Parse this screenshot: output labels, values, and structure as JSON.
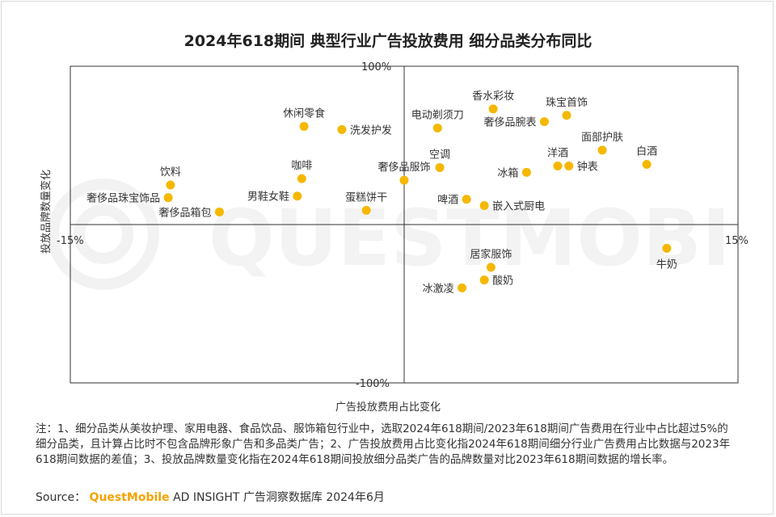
{
  "title": "2024年618期间 典型行业广告投放费用 细分品类分布同比",
  "watermark_text": "QUESTMOBILE",
  "chart_data": {
    "type": "scatter",
    "title": "2024年618期间 典型行业广告投放费用 细分品类分布同比",
    "xlabel": "广告投放费用占比变化",
    "ylabel": "投放品牌数量变化",
    "x_unit": "%",
    "y_unit": "%",
    "xlim": [
      -15,
      15
    ],
    "ylim": [
      -100,
      100
    ],
    "x_tick_labels": {
      "min": "-15%",
      "max": "15%"
    },
    "y_tick_labels": {
      "min": "-100%",
      "max": "100%"
    },
    "grid": false,
    "point_color": "#f5b800",
    "points": [
      {
        "label": "香水彩妆",
        "x": 4.0,
        "y": 73,
        "lp": "above"
      },
      {
        "label": "珠宝首饰",
        "x": 7.3,
        "y": 69,
        "lp": "above"
      },
      {
        "label": "电动剃须刀",
        "x": 1.5,
        "y": 61,
        "lp": "above"
      },
      {
        "label": "奢侈品腕表",
        "x": 6.3,
        "y": 65,
        "lp": "left"
      },
      {
        "label": "休闲零食",
        "x": -4.5,
        "y": 62,
        "lp": "above"
      },
      {
        "label": "洗发护发",
        "x": -2.8,
        "y": 60,
        "lp": "right"
      },
      {
        "label": "面部护肤",
        "x": 8.9,
        "y": 47,
        "lp": "above"
      },
      {
        "label": "洋酒",
        "x": 6.9,
        "y": 37,
        "lp": "above"
      },
      {
        "label": "白酒",
        "x": 10.9,
        "y": 38,
        "lp": "above"
      },
      {
        "label": "钟表",
        "x": 7.4,
        "y": 37,
        "lp": "right"
      },
      {
        "label": "空调",
        "x": 1.6,
        "y": 36,
        "lp": "above"
      },
      {
        "label": "冰箱",
        "x": 5.5,
        "y": 33,
        "lp": "left"
      },
      {
        "label": "奢侈品服饰",
        "x": 0.0,
        "y": 28,
        "lp": "above"
      },
      {
        "label": "饮料",
        "x": -10.5,
        "y": 25,
        "lp": "above"
      },
      {
        "label": "咖啡",
        "x": -4.6,
        "y": 29,
        "lp": "above"
      },
      {
        "label": "蛋糕饼干",
        "x": -1.7,
        "y": 9,
        "lp": "above"
      },
      {
        "label": "男鞋女鞋",
        "x": -4.8,
        "y": 18,
        "lp": "left"
      },
      {
        "label": "奢侈品珠宝饰品",
        "x": -10.6,
        "y": 17,
        "lp": "left"
      },
      {
        "label": "奢侈品箱包",
        "x": -8.3,
        "y": 8,
        "lp": "left"
      },
      {
        "label": "啤酒",
        "x": 2.8,
        "y": 16,
        "lp": "left"
      },
      {
        "label": "嵌入式厨电",
        "x": 3.6,
        "y": 12,
        "lp": "right"
      },
      {
        "label": "牛奶",
        "x": 11.8,
        "y": -15,
        "lp": "below"
      },
      {
        "label": "居家服饰",
        "x": 3.9,
        "y": -27,
        "lp": "above"
      },
      {
        "label": "酸奶",
        "x": 3.6,
        "y": -35,
        "lp": "right"
      },
      {
        "label": "冰激凌",
        "x": 2.6,
        "y": -40,
        "lp": "left"
      }
    ]
  },
  "footer": {
    "note": "注：1、细分品类从美妆护理、家用电器、食品饮品、服饰箱包行业中，选取2024年618期间/2023年618期间广告费用在行业中占比超过5%的细分品类，且计算占比时不包含品牌形象广告和多品类广告；2、广告投放费用占比变化指2024年618期间细分行业广告费用占比数据与2023年618期间数据的差值；3、投放品牌数量变化指在2024年618期间投放细分品类广告的品牌数量对比2023年618期间数据的增长率。",
    "source_prefix": "Source：",
    "source_brand": "QuestMobile",
    "source_rest": "AD INSIGHT 广告洞察数据库 2024年6月"
  }
}
